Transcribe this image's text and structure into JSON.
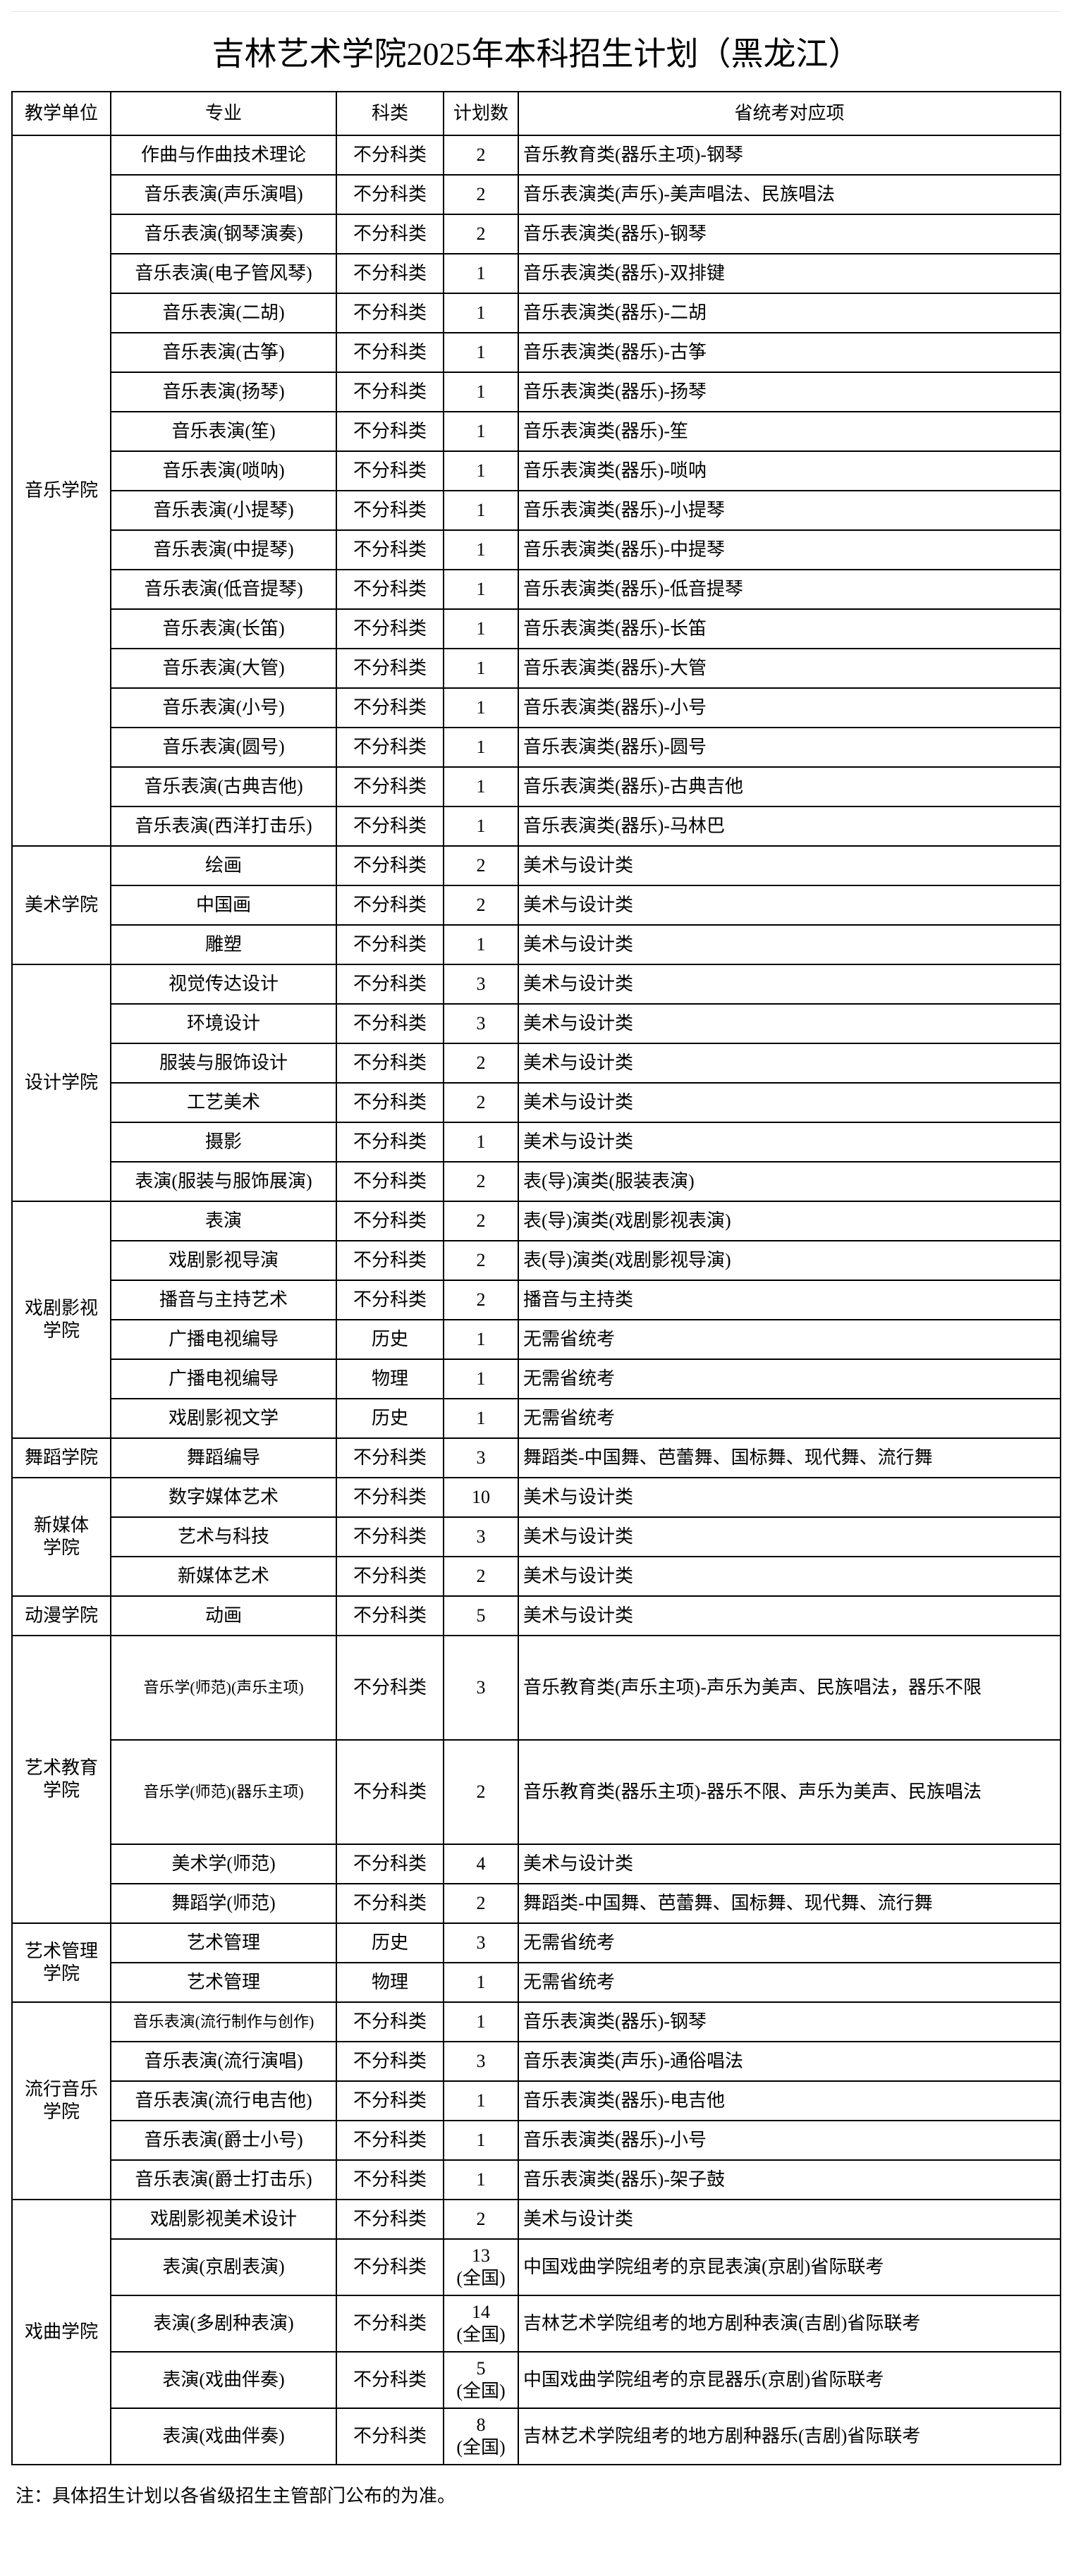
{
  "title": "吉林艺术学院2025年本科招生计划（黑龙江）",
  "headers": [
    "教学单位",
    "专业",
    "科类",
    "计划数",
    "省统考对应项"
  ],
  "units": [
    {
      "name": "音乐学院",
      "rows": [
        {
          "major": "作曲与作曲技术理论",
          "type": "不分科类",
          "count": "2",
          "map": "音乐教育类(器乐主项)-钢琴"
        },
        {
          "major": "音乐表演(声乐演唱)",
          "type": "不分科类",
          "count": "2",
          "map": "音乐表演类(声乐)-美声唱法、民族唱法"
        },
        {
          "major": "音乐表演(钢琴演奏)",
          "type": "不分科类",
          "count": "2",
          "map": "音乐表演类(器乐)-钢琴"
        },
        {
          "major": "音乐表演(电子管风琴)",
          "type": "不分科类",
          "count": "1",
          "map": "音乐表演类(器乐)-双排键"
        },
        {
          "major": "音乐表演(二胡)",
          "type": "不分科类",
          "count": "1",
          "map": "音乐表演类(器乐)-二胡"
        },
        {
          "major": "音乐表演(古筝)",
          "type": "不分科类",
          "count": "1",
          "map": "音乐表演类(器乐)-古筝"
        },
        {
          "major": "音乐表演(扬琴)",
          "type": "不分科类",
          "count": "1",
          "map": "音乐表演类(器乐)-扬琴"
        },
        {
          "major": "音乐表演(笙)",
          "type": "不分科类",
          "count": "1",
          "map": "音乐表演类(器乐)-笙"
        },
        {
          "major": "音乐表演(唢呐)",
          "type": "不分科类",
          "count": "1",
          "map": "音乐表演类(器乐)-唢呐"
        },
        {
          "major": "音乐表演(小提琴)",
          "type": "不分科类",
          "count": "1",
          "map": "音乐表演类(器乐)-小提琴"
        },
        {
          "major": "音乐表演(中提琴)",
          "type": "不分科类",
          "count": "1",
          "map": "音乐表演类(器乐)-中提琴"
        },
        {
          "major": "音乐表演(低音提琴)",
          "type": "不分科类",
          "count": "1",
          "map": "音乐表演类(器乐)-低音提琴"
        },
        {
          "major": "音乐表演(长笛)",
          "type": "不分科类",
          "count": "1",
          "map": "音乐表演类(器乐)-长笛"
        },
        {
          "major": "音乐表演(大管)",
          "type": "不分科类",
          "count": "1",
          "map": "音乐表演类(器乐)-大管"
        },
        {
          "major": "音乐表演(小号)",
          "type": "不分科类",
          "count": "1",
          "map": "音乐表演类(器乐)-小号"
        },
        {
          "major": "音乐表演(圆号)",
          "type": "不分科类",
          "count": "1",
          "map": "音乐表演类(器乐)-圆号"
        },
        {
          "major": "音乐表演(古典吉他)",
          "type": "不分科类",
          "count": "1",
          "map": "音乐表演类(器乐)-古典吉他"
        },
        {
          "major": "音乐表演(西洋打击乐)",
          "type": "不分科类",
          "count": "1",
          "map": "音乐表演类(器乐)-马林巴"
        }
      ]
    },
    {
      "name": "美术学院",
      "rows": [
        {
          "major": "绘画",
          "type": "不分科类",
          "count": "2",
          "map": "美术与设计类"
        },
        {
          "major": "中国画",
          "type": "不分科类",
          "count": "2",
          "map": "美术与设计类"
        },
        {
          "major": "雕塑",
          "type": "不分科类",
          "count": "1",
          "map": "美术与设计类"
        }
      ]
    },
    {
      "name": "设计学院",
      "rows": [
        {
          "major": "视觉传达设计",
          "type": "不分科类",
          "count": "3",
          "map": "美术与设计类"
        },
        {
          "major": "环境设计",
          "type": "不分科类",
          "count": "3",
          "map": "美术与设计类"
        },
        {
          "major": "服装与服饰设计",
          "type": "不分科类",
          "count": "2",
          "map": "美术与设计类"
        },
        {
          "major": "工艺美术",
          "type": "不分科类",
          "count": "2",
          "map": "美术与设计类"
        },
        {
          "major": "摄影",
          "type": "不分科类",
          "count": "1",
          "map": "美术与设计类"
        },
        {
          "major": "表演(服装与服饰展演)",
          "type": "不分科类",
          "count": "2",
          "map": "表(导)演类(服装表演)"
        }
      ]
    },
    {
      "name": "戏剧影视\n学院",
      "rows": [
        {
          "major": "表演",
          "type": "不分科类",
          "count": "2",
          "map": "表(导)演类(戏剧影视表演)"
        },
        {
          "major": "戏剧影视导演",
          "type": "不分科类",
          "count": "2",
          "map": "表(导)演类(戏剧影视导演)"
        },
        {
          "major": "播音与主持艺术",
          "type": "不分科类",
          "count": "2",
          "map": "播音与主持类"
        },
        {
          "major": "广播电视编导",
          "type": "历史",
          "count": "1",
          "map": "无需省统考"
        },
        {
          "major": "广播电视编导",
          "type": "物理",
          "count": "1",
          "map": "无需省统考"
        },
        {
          "major": "戏剧影视文学",
          "type": "历史",
          "count": "1",
          "map": "无需省统考"
        }
      ]
    },
    {
      "name": "舞蹈学院",
      "rows": [
        {
          "major": "舞蹈编导",
          "type": "不分科类",
          "count": "3",
          "map": "舞蹈类-中国舞、芭蕾舞、国标舞、现代舞、流行舞"
        }
      ]
    },
    {
      "name": "新媒体\n学院",
      "rows": [
        {
          "major": "数字媒体艺术",
          "type": "不分科类",
          "count": "10",
          "map": "美术与设计类"
        },
        {
          "major": "艺术与科技",
          "type": "不分科类",
          "count": "3",
          "map": "美术与设计类"
        },
        {
          "major": "新媒体艺术",
          "type": "不分科类",
          "count": "2",
          "map": "美术与设计类"
        }
      ]
    },
    {
      "name": "动漫学院",
      "rows": [
        {
          "major": "动画",
          "type": "不分科类",
          "count": "5",
          "map": "美术与设计类"
        }
      ]
    },
    {
      "name": "艺术教育\n学院",
      "rows": [
        {
          "major": "音乐学(师范)(声乐主项)",
          "type": "不分科类",
          "count": "3",
          "map": "音乐教育类(声乐主项)-声乐为美声、民族唱法，器乐不限"
        },
        {
          "major": "音乐学(师范)(器乐主项)",
          "type": "不分科类",
          "count": "2",
          "map": "音乐教育类(器乐主项)-器乐不限、声乐为美声、民族唱法"
        },
        {
          "major": "美术学(师范)",
          "type": "不分科类",
          "count": "4",
          "map": "美术与设计类"
        },
        {
          "major": "舞蹈学(师范)",
          "type": "不分科类",
          "count": "2",
          "map": "舞蹈类-中国舞、芭蕾舞、国标舞、现代舞、流行舞"
        }
      ]
    },
    {
      "name": "艺术管理\n学院",
      "rows": [
        {
          "major": "艺术管理",
          "type": "历史",
          "count": "3",
          "map": "无需省统考"
        },
        {
          "major": "艺术管理",
          "type": "物理",
          "count": "1",
          "map": "无需省统考"
        }
      ]
    },
    {
      "name": "流行音乐\n学院",
      "rows": [
        {
          "major": "音乐表演(流行制作与创作)",
          "type": "不分科类",
          "count": "1",
          "map": "音乐表演类(器乐)-钢琴"
        },
        {
          "major": "音乐表演(流行演唱)",
          "type": "不分科类",
          "count": "3",
          "map": "音乐表演类(声乐)-通俗唱法"
        },
        {
          "major": "音乐表演(流行电吉他)",
          "type": "不分科类",
          "count": "1",
          "map": "音乐表演类(器乐)-电吉他"
        },
        {
          "major": "音乐表演(爵士小号)",
          "type": "不分科类",
          "count": "1",
          "map": "音乐表演类(器乐)-小号"
        },
        {
          "major": "音乐表演(爵士打击乐)",
          "type": "不分科类",
          "count": "1",
          "map": "音乐表演类(器乐)-架子鼓"
        }
      ]
    },
    {
      "name": "戏曲学院",
      "rows": [
        {
          "major": "戏剧影视美术设计",
          "type": "不分科类",
          "count": "2",
          "map": "美术与设计类"
        },
        {
          "major": "表演(京剧表演)",
          "type": "不分科类",
          "count": "13",
          "count_note": "(全国)",
          "map": "中国戏曲学院组考的京昆表演(京剧)省际联考"
        },
        {
          "major": "表演(多剧种表演)",
          "type": "不分科类",
          "count": "14",
          "count_note": "(全国)",
          "map": "吉林艺术学院组考的地方剧种表演(吉剧)省际联考"
        },
        {
          "major": "表演(戏曲伴奏)",
          "type": "不分科类",
          "count": "5",
          "count_note": "(全国)",
          "map": "中国戏曲学院组考的京昆器乐(京剧)省际联考"
        },
        {
          "major": "表演(戏曲伴奏)",
          "type": "不分科类",
          "count": "8",
          "count_note": "(全国)",
          "map": "吉林艺术学院组考的地方剧种器乐(吉剧)省际联考"
        }
      ]
    }
  ],
  "footer_note": "注：具体招生计划以各省级招生主管部门公布的为准。"
}
